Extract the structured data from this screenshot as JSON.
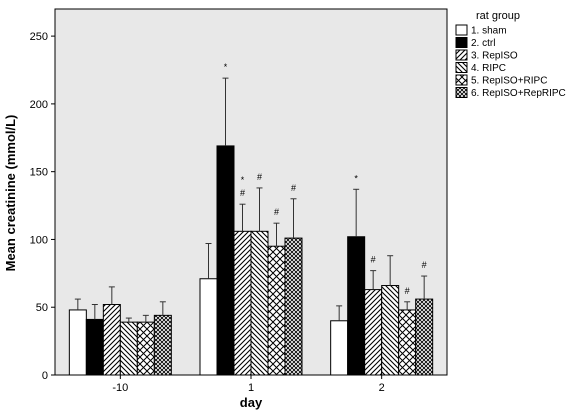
{
  "chart_data": {
    "type": "bar",
    "xlabel": "day",
    "ylabel": "Mean creatinine (mmol/L)",
    "ylim": [
      0,
      270
    ],
    "yticks": [
      0,
      50,
      100,
      150,
      200,
      250
    ],
    "categories": [
      "-10",
      "1",
      "2"
    ],
    "legend_title": "rat group",
    "legend_position": "top-right",
    "background_color": "#e8e8e8",
    "series": [
      {
        "name": "1. sham",
        "pattern": "white",
        "values": [
          48,
          71,
          40
        ],
        "errors": [
          8,
          26,
          11
        ],
        "marks": [
          "",
          "",
          ""
        ]
      },
      {
        "name": "2. ctrl",
        "pattern": "black",
        "values": [
          41,
          169,
          102
        ],
        "errors": [
          11,
          50,
          35
        ],
        "marks": [
          "",
          "*",
          "*"
        ]
      },
      {
        "name": "3. RepISO",
        "pattern": "diag-right",
        "values": [
          52,
          106,
          63
        ],
        "errors": [
          13,
          20,
          14
        ],
        "marks": [
          "",
          "*\n#",
          "#"
        ]
      },
      {
        "name": "4. RIPC",
        "pattern": "diag-left",
        "values": [
          39,
          106,
          66
        ],
        "errors": [
          3,
          32,
          22
        ],
        "marks": [
          "",
          "#",
          ""
        ]
      },
      {
        "name": "5. RepISO+RIPC",
        "pattern": "cross-diag",
        "values": [
          39,
          95,
          48
        ],
        "errors": [
          5,
          17,
          6
        ],
        "marks": [
          "",
          "#",
          "#"
        ]
      },
      {
        "name": "6. RepISO+RepRIPC",
        "pattern": "cross-dense",
        "values": [
          44,
          101,
          56
        ],
        "errors": [
          10,
          29,
          17
        ],
        "marks": [
          "",
          "#",
          "#"
        ]
      }
    ]
  }
}
